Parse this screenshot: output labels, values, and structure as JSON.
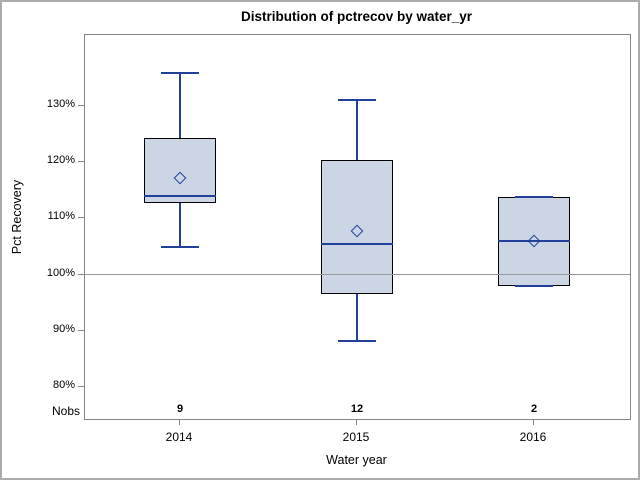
{
  "chart_data": {
    "type": "boxplot",
    "title": "Distribution of pctrecov by water_yr",
    "xlabel": "Water year",
    "ylabel": "Pct Recovery",
    "categories": [
      "2014",
      "2015",
      "2016"
    ],
    "y_ticks": [
      130,
      120,
      110,
      100,
      90,
      80
    ],
    "y_tick_labels": [
      "130%",
      "120%",
      "110%",
      "100%",
      "90%",
      "80%"
    ],
    "ylim": [
      74,
      142
    ],
    "grid": false,
    "legend": false,
    "reference_line": 100,
    "nobs_row_label": "Nobs",
    "boxes": [
      {
        "category": "2014",
        "nobs": "9",
        "whisker_low": 104.9,
        "q1": 112.7,
        "median": 114.0,
        "q3": 124.3,
        "whisker_high": 135.8,
        "mean": 117.2
      },
      {
        "category": "2015",
        "nobs": "12",
        "whisker_low": 88.2,
        "q1": 96.5,
        "median": 105.4,
        "q3": 120.4,
        "whisker_high": 131.1,
        "mean": 107.8
      },
      {
        "category": "2016",
        "nobs": "2",
        "whisker_low": 98.0,
        "q1": 98.0,
        "median": 106.0,
        "q3": 113.8,
        "whisker_high": 113.8,
        "mean": 106.0
      }
    ],
    "colors": {
      "box_fill": "#ccd5e4",
      "box_border": "#000000",
      "line": "#20409a",
      "reference_line": "#9a9a9a",
      "axis": "#868686",
      "outer_border": "#ababab",
      "text": "#000000"
    }
  }
}
